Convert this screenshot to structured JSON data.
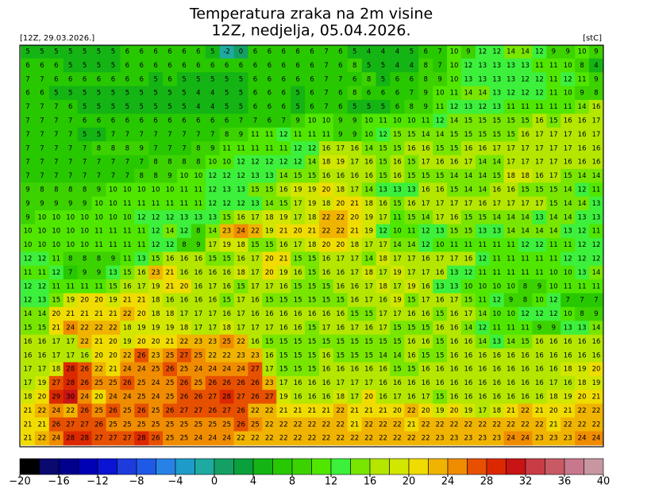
{
  "header": {
    "title": "Temperatura zraka na 2m visine",
    "subtitle": "12Z, nedjelja, 05.04.2026.",
    "run": "[12Z, 29.03.2026.]",
    "unit": "[stC]"
  },
  "grid": {
    "rows": [
      [
        5,
        5,
        5,
        5,
        5,
        5,
        5,
        6,
        6,
        6,
        6,
        6,
        6,
        5,
        -2,
        0,
        6,
        6,
        6,
        6,
        6,
        7,
        6,
        5,
        4,
        4,
        4,
        5,
        6,
        7,
        10,
        9,
        12,
        12,
        14,
        14,
        12,
        9,
        9,
        10,
        9
      ],
      [
        6,
        6,
        6,
        5,
        5,
        5,
        5,
        6,
        6,
        6,
        6,
        6,
        6,
        6,
        6,
        6,
        6,
        6,
        6,
        6,
        6,
        7,
        6,
        8,
        5,
        5,
        4,
        4,
        8,
        7,
        10,
        12,
        13,
        13,
        13,
        13,
        11,
        11,
        10,
        8,
        4
      ],
      [
        7,
        7,
        6,
        6,
        6,
        6,
        6,
        6,
        6,
        5,
        6,
        5,
        5,
        5,
        5,
        5,
        6,
        6,
        6,
        6,
        6,
        7,
        7,
        6,
        8,
        5,
        6,
        6,
        8,
        9,
        10,
        13,
        13,
        13,
        13,
        12,
        12,
        11,
        12,
        11,
        9
      ],
      [
        6,
        6,
        5,
        5,
        5,
        5,
        5,
        5,
        5,
        5,
        5,
        5,
        4,
        4,
        5,
        5,
        6,
        6,
        6,
        5,
        6,
        7,
        6,
        8,
        6,
        6,
        6,
        7,
        9,
        10,
        11,
        14,
        14,
        13,
        12,
        12,
        12,
        11,
        10,
        9,
        8
      ],
      [
        7,
        7,
        7,
        6,
        5,
        5,
        5,
        5,
        5,
        5,
        5,
        5,
        4,
        4,
        5,
        5,
        6,
        6,
        6,
        5,
        6,
        7,
        6,
        5,
        5,
        5,
        6,
        8,
        9,
        11,
        12,
        13,
        12,
        13,
        11,
        11,
        11,
        11,
        11,
        14,
        16
      ],
      [
        7,
        7,
        7,
        7,
        6,
        6,
        6,
        6,
        6,
        6,
        6,
        6,
        6,
        6,
        6,
        7,
        7,
        6,
        7,
        9,
        10,
        10,
        9,
        9,
        10,
        11,
        10,
        10,
        11,
        12,
        14,
        15,
        15,
        15,
        15,
        15,
        16,
        15,
        16,
        16,
        17
      ],
      [
        7,
        7,
        7,
        7,
        5,
        5,
        7,
        7,
        7,
        7,
        7,
        7,
        7,
        7,
        8,
        9,
        11,
        11,
        12,
        11,
        11,
        11,
        9,
        9,
        10,
        12,
        15,
        15,
        14,
        14,
        15,
        15,
        15,
        15,
        15,
        16,
        17,
        17,
        17,
        16,
        17
      ],
      [
        7,
        7,
        7,
        7,
        7,
        8,
        8,
        8,
        9,
        7,
        7,
        7,
        8,
        9,
        11,
        11,
        11,
        11,
        11,
        12,
        12,
        16,
        17,
        16,
        14,
        15,
        15,
        16,
        16,
        15,
        15,
        16,
        16,
        17,
        17,
        17,
        17,
        17,
        17,
        16,
        16
      ],
      [
        7,
        7,
        7,
        7,
        7,
        7,
        7,
        7,
        7,
        8,
        8,
        8,
        8,
        10,
        10,
        12,
        12,
        12,
        12,
        12,
        14,
        18,
        19,
        17,
        16,
        15,
        16,
        15,
        17,
        16,
        16,
        17,
        14,
        14,
        17,
        17,
        17,
        17,
        16,
        16,
        16
      ],
      [
        7,
        7,
        7,
        7,
        7,
        7,
        7,
        7,
        8,
        8,
        9,
        10,
        10,
        12,
        12,
        12,
        13,
        13,
        14,
        15,
        15,
        16,
        16,
        16,
        16,
        15,
        16,
        15,
        15,
        15,
        14,
        14,
        14,
        15,
        18,
        18,
        16,
        17,
        15,
        14,
        14
      ],
      [
        9,
        8,
        8,
        8,
        8,
        9,
        10,
        10,
        10,
        10,
        10,
        11,
        11,
        12,
        13,
        13,
        15,
        15,
        16,
        19,
        19,
        20,
        18,
        17,
        14,
        13,
        13,
        13,
        16,
        16,
        15,
        14,
        14,
        16,
        16,
        15,
        15,
        15,
        14,
        12,
        11
      ],
      [
        9,
        9,
        9,
        9,
        9,
        10,
        10,
        11,
        11,
        11,
        11,
        11,
        11,
        12,
        12,
        12,
        13,
        14,
        15,
        17,
        19,
        18,
        20,
        21,
        18,
        16,
        15,
        16,
        17,
        17,
        17,
        17,
        16,
        17,
        17,
        17,
        17,
        15,
        14,
        14,
        13
      ],
      [
        9,
        10,
        10,
        10,
        10,
        10,
        10,
        10,
        12,
        12,
        12,
        13,
        13,
        13,
        15,
        16,
        17,
        18,
        19,
        17,
        18,
        22,
        22,
        20,
        19,
        17,
        11,
        15,
        14,
        17,
        16,
        15,
        15,
        14,
        14,
        14,
        13,
        14,
        14,
        13,
        13
      ],
      [
        10,
        10,
        10,
        10,
        10,
        11,
        11,
        11,
        11,
        12,
        14,
        12,
        8,
        14,
        23,
        24,
        22,
        19,
        21,
        20,
        21,
        22,
        22,
        21,
        19,
        12,
        10,
        11,
        12,
        13,
        15,
        15,
        13,
        13,
        14,
        14,
        14,
        14,
        13,
        12,
        11
      ],
      [
        10,
        10,
        10,
        10,
        10,
        11,
        11,
        11,
        11,
        12,
        12,
        8,
        9,
        17,
        19,
        18,
        15,
        15,
        16,
        17,
        18,
        20,
        20,
        18,
        17,
        17,
        14,
        14,
        12,
        10,
        11,
        11,
        11,
        11,
        11,
        12,
        12,
        11,
        11,
        12,
        12
      ],
      [
        12,
        12,
        11,
        8,
        8,
        8,
        9,
        11,
        13,
        15,
        16,
        16,
        16,
        15,
        15,
        16,
        17,
        20,
        21,
        15,
        15,
        16,
        17,
        17,
        14,
        18,
        17,
        17,
        16,
        17,
        17,
        16,
        12,
        11,
        11,
        11,
        11,
        11,
        12,
        12,
        12
      ],
      [
        11,
        11,
        12,
        7,
        9,
        9,
        13,
        15,
        16,
        23,
        21,
        16,
        16,
        16,
        16,
        18,
        17,
        20,
        19,
        16,
        15,
        16,
        16,
        17,
        18,
        17,
        19,
        17,
        17,
        16,
        13,
        12,
        11,
        11,
        11,
        11,
        11,
        10,
        10,
        13,
        14
      ],
      [
        12,
        12,
        11,
        11,
        11,
        11,
        15,
        16,
        17,
        19,
        21,
        20,
        16,
        17,
        16,
        15,
        17,
        17,
        16,
        15,
        15,
        15,
        16,
        16,
        17,
        18,
        17,
        19,
        16,
        13,
        13,
        10,
        10,
        10,
        10,
        8,
        9,
        10,
        11,
        11,
        11
      ],
      [
        12,
        13,
        15,
        19,
        20,
        20,
        19,
        21,
        21,
        18,
        16,
        16,
        16,
        16,
        15,
        17,
        16,
        15,
        15,
        15,
        15,
        15,
        15,
        16,
        17,
        16,
        19,
        15,
        17,
        16,
        17,
        15,
        11,
        12,
        9,
        8,
        10,
        12,
        7,
        7,
        7
      ],
      [
        14,
        14,
        20,
        21,
        21,
        21,
        21,
        22,
        20,
        18,
        18,
        17,
        17,
        17,
        16,
        17,
        16,
        16,
        16,
        16,
        16,
        16,
        16,
        15,
        15,
        17,
        17,
        16,
        16,
        15,
        16,
        17,
        14,
        10,
        10,
        12,
        12,
        12,
        10,
        8,
        9
      ],
      [
        15,
        15,
        21,
        24,
        22,
        22,
        22,
        18,
        19,
        19,
        19,
        18,
        17,
        17,
        18,
        17,
        17,
        17,
        16,
        16,
        15,
        17,
        16,
        17,
        16,
        17,
        15,
        15,
        15,
        16,
        16,
        14,
        12,
        11,
        11,
        11,
        9,
        9,
        13,
        13,
        14
      ],
      [
        16,
        16,
        17,
        17,
        22,
        21,
        20,
        19,
        20,
        20,
        21,
        22,
        23,
        23,
        25,
        22,
        16,
        15,
        15,
        15,
        15,
        15,
        15,
        15,
        15,
        15,
        15,
        16,
        16,
        15,
        16,
        16,
        14,
        13,
        14,
        15,
        16,
        16,
        16,
        16,
        16
      ],
      [
        16,
        16,
        17,
        17,
        16,
        20,
        20,
        22,
        26,
        23,
        25,
        27,
        25,
        22,
        22,
        23,
        23,
        16,
        15,
        15,
        15,
        16,
        15,
        15,
        15,
        14,
        14,
        16,
        15,
        15,
        16,
        16,
        16,
        16,
        16,
        16,
        16,
        16,
        16,
        16,
        16
      ],
      [
        17,
        17,
        18,
        28,
        26,
        22,
        21,
        24,
        24,
        25,
        26,
        25,
        24,
        24,
        24,
        24,
        27,
        17,
        15,
        15,
        15,
        16,
        16,
        16,
        16,
        16,
        15,
        15,
        16,
        16,
        16,
        16,
        16,
        16,
        16,
        16,
        16,
        16,
        18,
        19,
        20
      ],
      [
        17,
        19,
        27,
        28,
        26,
        25,
        25,
        26,
        25,
        24,
        25,
        26,
        25,
        26,
        26,
        26,
        26,
        23,
        17,
        16,
        16,
        16,
        17,
        17,
        17,
        16,
        16,
        16,
        16,
        16,
        16,
        16,
        16,
        16,
        16,
        16,
        16,
        17,
        16,
        18,
        19
      ],
      [
        18,
        20,
        29,
        30,
        24,
        20,
        24,
        24,
        25,
        24,
        25,
        26,
        26,
        27,
        28,
        27,
        26,
        27,
        19,
        16,
        16,
        16,
        18,
        17,
        20,
        16,
        17,
        16,
        17,
        15,
        16,
        16,
        16,
        16,
        16,
        16,
        16,
        18,
        19,
        20,
        21
      ],
      [
        21,
        22,
        24,
        22,
        26,
        25,
        26,
        25,
        26,
        25,
        26,
        27,
        27,
        26,
        27,
        26,
        22,
        22,
        21,
        21,
        21,
        21,
        22,
        21,
        21,
        21,
        20,
        22,
        20,
        19,
        20,
        19,
        17,
        18,
        21,
        22,
        21,
        20,
        21,
        22,
        22
      ],
      [
        21,
        21,
        26,
        27,
        27,
        26,
        25,
        25,
        25,
        25,
        25,
        25,
        25,
        25,
        25,
        26,
        25,
        22,
        22,
        22,
        22,
        22,
        22,
        21,
        22,
        22,
        22,
        21,
        22,
        22,
        22,
        22,
        22,
        22,
        22,
        22,
        22,
        21,
        22,
        22,
        22
      ],
      [
        21,
        22,
        24,
        28,
        28,
        27,
        27,
        27,
        28,
        26,
        25,
        25,
        24,
        24,
        24,
        22,
        22,
        22,
        22,
        22,
        22,
        22,
        22,
        22,
        22,
        22,
        22,
        22,
        22,
        23,
        23,
        23,
        23,
        23,
        24,
        24,
        23,
        23,
        23,
        24,
        24
      ]
    ]
  },
  "colorbar": {
    "range": [
      -20,
      40
    ],
    "colors": [
      "#000000",
      "#0a0a6e",
      "#00008c",
      "#0000b4",
      "#0a14d2",
      "#1e3cdc",
      "#1e5ae6",
      "#2882e6",
      "#1e9bc8",
      "#1eaaa0",
      "#14a064",
      "#0aa03c",
      "#14b414",
      "#28c800",
      "#3cd200",
      "#50e600",
      "#3cf03c",
      "#78e600",
      "#b4e600",
      "#d2e600",
      "#f0dc00",
      "#f0b400",
      "#f08c00",
      "#e65000",
      "#dc2800",
      "#c81414",
      "#c83c46",
      "#c85a64",
      "#c8788c",
      "#c896a0"
    ],
    "ticks": [
      {
        "value": -20,
        "label": "−20"
      },
      {
        "value": -16,
        "label": "−16"
      },
      {
        "value": -12,
        "label": "−12"
      },
      {
        "value": -8,
        "label": "−8"
      },
      {
        "value": -4,
        "label": "−4"
      },
      0,
      4,
      8,
      12,
      16,
      20,
      24,
      28,
      32,
      36,
      40
    ]
  }
}
